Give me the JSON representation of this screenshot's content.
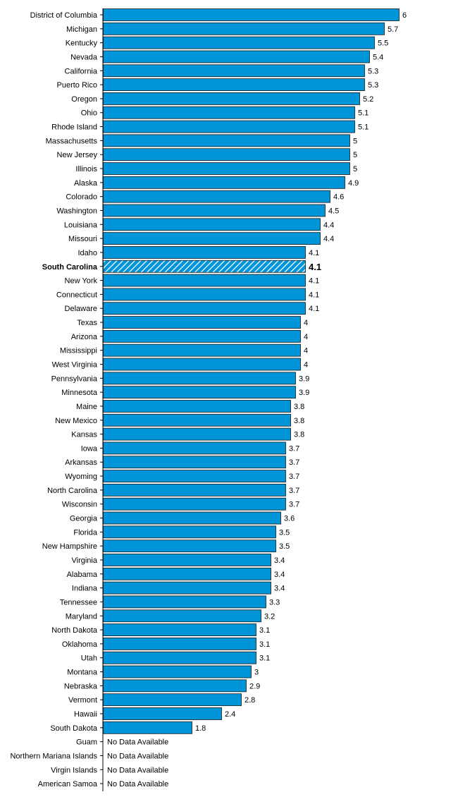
{
  "chart_data": {
    "type": "bar",
    "orientation": "horizontal",
    "bar_color": "#0095D8",
    "highlight_category": "South Carolina",
    "highlight_style": "hatched",
    "categories": [
      "District of Columbia",
      "Michigan",
      "Kentucky",
      "Nevada",
      "California",
      "Puerto Rico",
      "Oregon",
      "Ohio",
      "Rhode Island",
      "Massachusetts",
      "New Jersey",
      "Illinois",
      "Alaska",
      "Colorado",
      "Washington",
      "Louisiana",
      "Missouri",
      "Idaho",
      "South Carolina",
      "New York",
      "Connecticut",
      "Delaware",
      "Texas",
      "Arizona",
      "Mississippi",
      "West Virginia",
      "Pennsylvania",
      "Minnesota",
      "Maine",
      "New Mexico",
      "Kansas",
      "Iowa",
      "Arkansas",
      "Wyoming",
      "North Carolina",
      "Wisconsin",
      "Georgia",
      "Florida",
      "New Hampshire",
      "Virginia",
      "Alabama",
      "Indiana",
      "Tennessee",
      "Maryland",
      "North Dakota",
      "Oklahoma",
      "Utah",
      "Montana",
      "Nebraska",
      "Vermont",
      "Hawaii",
      "South Dakota",
      "Guam",
      "Northern Mariana Islands",
      "Virgin Islands",
      "American Samoa"
    ],
    "value_labels": [
      "6",
      "5.7",
      "5.5",
      "5.4",
      "5.3",
      "5.3",
      "5.2",
      "5.1",
      "5.1",
      "5",
      "5",
      "5",
      "4.9",
      "4.6",
      "4.5",
      "4.4",
      "4.4",
      "4.1",
      "4.1",
      "4.1",
      "4.1",
      "4.1",
      "4",
      "4",
      "4",
      "4",
      "3.9",
      "3.9",
      "3.8",
      "3.8",
      "3.8",
      "3.7",
      "3.7",
      "3.7",
      "3.7",
      "3.7",
      "3.6",
      "3.5",
      "3.5",
      "3.4",
      "3.4",
      "3.4",
      "3.3",
      "3.2",
      "3.1",
      "3.1",
      "3.1",
      "3",
      "2.9",
      "2.8",
      "2.4",
      "1.8",
      "No Data Available",
      "No Data Available",
      "No Data Available",
      "No Data Available"
    ],
    "values": [
      6,
      5.7,
      5.5,
      5.4,
      5.3,
      5.3,
      5.2,
      5.1,
      5.1,
      5,
      5,
      5,
      4.9,
      4.6,
      4.5,
      4.4,
      4.4,
      4.1,
      4.1,
      4.1,
      4.1,
      4.1,
      4,
      4,
      4,
      4,
      3.9,
      3.9,
      3.8,
      3.8,
      3.8,
      3.7,
      3.7,
      3.7,
      3.7,
      3.7,
      3.6,
      3.5,
      3.5,
      3.4,
      3.4,
      3.4,
      3.3,
      3.2,
      3.1,
      3.1,
      3.1,
      3,
      2.9,
      2.8,
      2.4,
      1.8,
      null,
      null,
      null,
      null
    ],
    "xlim": [
      0,
      6
    ],
    "grid": false,
    "legend": "none"
  }
}
